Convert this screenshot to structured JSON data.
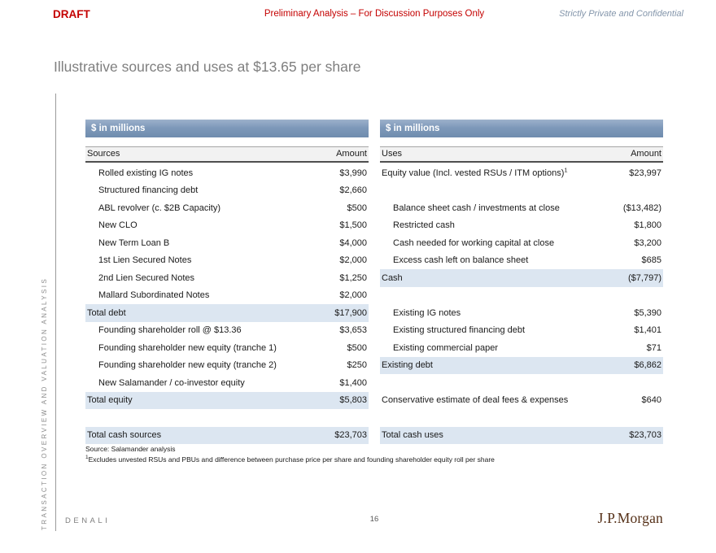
{
  "header": {
    "draft_label": "DRAFT",
    "center_note": "Preliminary Analysis – For Discussion Purposes Only",
    "confidential_note": "Strictly Private and Confidential"
  },
  "title": "Illustrative sources and uses at $13.65 per share",
  "sidebar": {
    "section_label": "TRANSACTION OVERVIEW AND VALUATION ANALYSIS"
  },
  "colors": {
    "draft_red": "#c40000",
    "confidential_blue_gray": "#8496ab",
    "table_bar_blue": "#7e99ba",
    "highlight_row_blue": "#dce6f1",
    "jpmorgan_brown": "#553018"
  },
  "tables": {
    "sources": {
      "units_label": "$ in millions",
      "col_label": "Sources",
      "col_amount": "Amount",
      "rows": [
        {
          "label": "Rolled existing IG notes",
          "value": "$3,990",
          "indent": true
        },
        {
          "label": "Structured financing debt",
          "value": "$2,660",
          "indent": true
        },
        {
          "label": "ABL revolver (c. $2B Capacity)",
          "value": "$500",
          "indent": true
        },
        {
          "label": "New CLO",
          "value": "$1,500",
          "indent": true
        },
        {
          "label": "New Term Loan B",
          "value": "$4,000",
          "indent": true
        },
        {
          "label": "1st Lien Secured Notes",
          "value": "$2,000",
          "indent": true
        },
        {
          "label": "2nd Lien Secured Notes",
          "value": "$1,250",
          "indent": true
        },
        {
          "label": "Mallard Subordinated Notes",
          "value": "$2,000",
          "indent": true
        },
        {
          "label": "Total debt",
          "value": "$17,900",
          "highlight": true
        },
        {
          "label": "Founding shareholder roll @ $13.36",
          "value": "$3,653",
          "indent": true
        },
        {
          "label": "Founding shareholder new equity (tranche 1)",
          "value": "$500",
          "indent": true
        },
        {
          "label": "Founding shareholder new equity (tranche 2)",
          "value": "$250",
          "indent": true
        },
        {
          "label": "New Salamander / co-investor equity",
          "value": "$1,400",
          "indent": true
        },
        {
          "label": "Total equity",
          "value": "$5,803",
          "highlight": true
        },
        {
          "blank": true
        },
        {
          "label": "Total cash sources",
          "value": "$23,703",
          "highlight": true
        }
      ]
    },
    "uses": {
      "units_label": "$ in millions",
      "col_label": "Uses",
      "col_amount": "Amount",
      "rows": [
        {
          "label": "Equity value (Incl. vested RSUs / ITM options)",
          "sup": "1",
          "value": "$23,997"
        },
        {
          "blank": true
        },
        {
          "label": "Balance sheet cash / investments at close",
          "value": "($13,482)",
          "indent": true
        },
        {
          "label": "Restricted cash",
          "value": "$1,800",
          "indent": true
        },
        {
          "label": "Cash needed for working capital at close",
          "value": "$3,200",
          "indent": true
        },
        {
          "label": "Excess cash left on balance sheet",
          "value": "$685",
          "indent": true
        },
        {
          "label": "Cash",
          "value": "($7,797)",
          "highlight": true
        },
        {
          "blank": true
        },
        {
          "label": "Existing IG notes",
          "value": "$5,390",
          "indent": true
        },
        {
          "label": "Existing structured financing debt",
          "value": "$1,401",
          "indent": true
        },
        {
          "label": "Existing commercial paper",
          "value": "$71",
          "indent": true
        },
        {
          "label": "Existing debt",
          "value": "$6,862",
          "highlight": true
        },
        {
          "blank": true
        },
        {
          "label": "Conservative estimate of deal fees & expenses",
          "value": "$640"
        },
        {
          "blank": true
        },
        {
          "label": "Total cash uses",
          "value": "$23,703",
          "highlight": true
        }
      ]
    }
  },
  "footnotes": {
    "source_line": "Source: Salamander analysis",
    "note_sup": "1",
    "note_text": "Excludes unvested RSUs and PBUs and difference between purchase price per share and founding shareholder equity roll per share"
  },
  "footer": {
    "project_name": "DENALI",
    "page_number": "16",
    "logo_text": "J.P.Morgan"
  }
}
